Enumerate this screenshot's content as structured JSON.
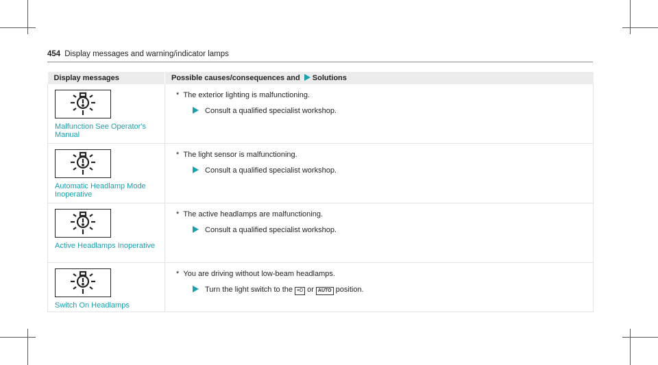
{
  "page": {
    "number": "454",
    "title": "Display messages and warning/indicator lamps"
  },
  "table": {
    "headers": [
      "Display messages",
      "Possible causes/consequences and",
      "Solutions"
    ],
    "accent": "#1aa0ab",
    "rows": [
      {
        "icon": "exterior-light-warning-icon",
        "message": "Malfunction See Operator's Manual",
        "cause": "The exterior lighting is malfunctioning.",
        "solution": "Consult a qualified specialist workshop."
      },
      {
        "icon": "exterior-light-warning-icon",
        "message": "Automatic Headlamp Mode Inoperative",
        "cause": "The light sensor is malfunctioning.",
        "solution": "Consult a qualified specialist workshop."
      },
      {
        "icon": "exterior-light-warning-icon",
        "message": "Active Headlamps Inoperative",
        "cause": "The active headlamps are malfunctioning.",
        "solution": "Consult a qualified specialist workshop."
      },
      {
        "icon": "exterior-light-warning-icon",
        "message": "Switch On Headlamps",
        "cause": "You are driving without low-beam headlamps.",
        "solution_parts": [
          "Turn the light switch to the",
          "or",
          "position."
        ],
        "switch_symbols": [
          "low-beam-icon",
          "AUTO"
        ]
      }
    ]
  }
}
